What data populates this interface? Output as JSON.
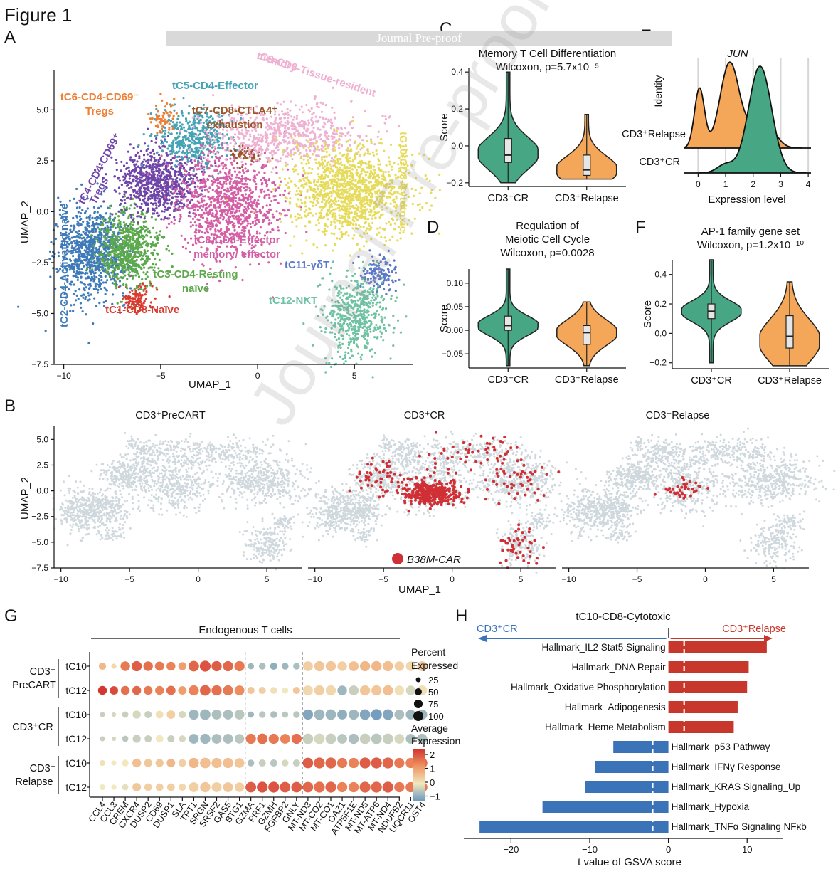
{
  "figure_title": "Figure 1",
  "watermark": "Journal Pre-proof",
  "panel_letters": {
    "A": "A",
    "B": "B",
    "C": "C",
    "D": "D",
    "E": "E",
    "F": "F",
    "G": "G",
    "H": "H"
  },
  "colors": {
    "tC1": "#d83a2e",
    "tC2": "#3f7ab8",
    "tC3": "#5ba94c",
    "tC4": "#6f45a8",
    "tC5": "#45a3b5",
    "tC6": "#ee7f35",
    "tC7": "#9a5528",
    "tC8": "#d45fa6",
    "tC9": "#efb1d2",
    "tC10": "#e6db5a",
    "tC11": "#5b78c8",
    "tC12": "#6fc2a3",
    "cr_green": "#47a683",
    "relapse_orange": "#f4a758",
    "car_red": "#d02f35",
    "bg_grey": "#cfd8dd",
    "bar_red": "#c8372c",
    "bar_blue": "#3b73b9"
  },
  "chart_data": [
    {
      "id": "A",
      "type": "scatter",
      "title": "",
      "xlabel": "UMAP_1",
      "ylabel": "UMAP_2",
      "xlim": [
        -10.5,
        8
      ],
      "ylim": [
        -7.5,
        6.2
      ],
      "xticks": [
        "−10",
        "−5",
        "0",
        "5"
      ],
      "yticks": [
        "5.0",
        "2.5",
        "0.0",
        "−2.5",
        "−5.0",
        "−7.5"
      ],
      "clusters": [
        {
          "name": "tC1-CD8-Naïve",
          "color_key": "tC1",
          "x": -6.3,
          "y": -4.3,
          "sx": 0.45,
          "sy": 0.35,
          "n": 120
        },
        {
          "name": "tC2-CD4-Activated  naïve",
          "color_key": "tC2",
          "x": -8.5,
          "y": -2.0,
          "sx": 0.9,
          "sy": 1.1,
          "n": 900
        },
        {
          "name": "tC3-CD4-Resting naïve",
          "color_key": "tC3",
          "x": -6.6,
          "y": -1.8,
          "sx": 0.75,
          "sy": 0.9,
          "n": 650
        },
        {
          "name": "tC4-CD4-CD69+ Tregs",
          "color_key": "tC4",
          "x": -5.2,
          "y": 1.4,
          "sx": 1.0,
          "sy": 0.8,
          "n": 800
        },
        {
          "name": "tC5-CD4-Effector",
          "color_key": "tC5",
          "x": -3.3,
          "y": 3.6,
          "sx": 0.9,
          "sy": 0.7,
          "n": 450
        },
        {
          "name": "tC6-CD4-CD69- Tregs",
          "color_key": "tC6",
          "x": -4.9,
          "y": 4.6,
          "sx": 0.3,
          "sy": 0.4,
          "n": 60
        },
        {
          "name": "tC7-CD8-CTLA4+ exhaustion",
          "color_key": "tC7",
          "x": -0.6,
          "y": 2.8,
          "sx": 0.4,
          "sy": 0.2,
          "n": 60
        },
        {
          "name": "tC8-CD8-Effector memory/ effector",
          "color_key": "tC8",
          "x": -1.5,
          "y": 0.4,
          "sx": 1.3,
          "sy": 1.2,
          "n": 1000
        },
        {
          "name": "tC9-CD8-Tissue-resident memory",
          "color_key": "tC9",
          "x": 1.5,
          "y": 3.8,
          "sx": 2.0,
          "sy": 0.7,
          "n": 700
        },
        {
          "name": "tC10-CD8-Cytotoxic",
          "color_key": "tC10",
          "x": 4.8,
          "y": 1.0,
          "sx": 1.5,
          "sy": 1.1,
          "n": 1300
        },
        {
          "name": "tC11-γδT",
          "color_key": "tC11",
          "x": 6.2,
          "y": -3.0,
          "sx": 0.5,
          "sy": 0.4,
          "n": 130
        },
        {
          "name": "tC12-NKT",
          "color_key": "tC12",
          "x": 5.0,
          "y": -5.1,
          "sx": 0.8,
          "sy": 1.0,
          "n": 550
        }
      ]
    },
    {
      "id": "C",
      "type": "violin",
      "title_lines": [
        "Memory T Cell Differentiation",
        "Wilcoxon, p=5.7x10⁻⁵"
      ],
      "ylabel": "Score",
      "ylim": [
        -0.22,
        0.42
      ],
      "yticks": [
        0.4,
        0.2,
        0.0,
        -0.2
      ],
      "ytick_labels": [
        "0.4",
        "0.2",
        "0.0",
        "−0.2"
      ],
      "groups": [
        {
          "name": "CD3⁺CR",
          "color_key": "cr_green",
          "min": -0.2,
          "max": 0.4,
          "q1": -0.09,
          "median": -0.05,
          "q3": 0.04,
          "mode": -0.04
        },
        {
          "name": "CD3⁺Relapse",
          "color_key": "relapse_orange",
          "min": -0.18,
          "max": 0.17,
          "q1": -0.16,
          "median": -0.13,
          "q3": -0.05,
          "mode": -0.13
        }
      ]
    },
    {
      "id": "D",
      "type": "violin",
      "title_lines": [
        "Regulation of",
        "Meiotic Cell Cycle",
        "Wilcoxon, p=0.0028"
      ],
      "ylabel": "Score",
      "ylim": [
        -0.08,
        0.13
      ],
      "yticks": [
        0.1,
        0.05,
        0.0,
        -0.05
      ],
      "ytick_labels": [
        "0.10",
        "0.05",
        "0.00",
        "−0.05"
      ],
      "groups": [
        {
          "name": "CD3⁺CR",
          "color_key": "cr_green",
          "min": -0.075,
          "max": 0.13,
          "q1": 0.0,
          "median": 0.01,
          "q3": 0.03,
          "mode": 0.01
        },
        {
          "name": "CD3⁺Relapse",
          "color_key": "relapse_orange",
          "min": -0.075,
          "max": 0.06,
          "q1": -0.03,
          "median": -0.005,
          "q3": 0.01,
          "mode": -0.005
        }
      ]
    },
    {
      "id": "E",
      "type": "ridgeline",
      "title": "JUN",
      "xlabel": "Expression level",
      "ylabel": "Identity",
      "xlim": [
        -0.5,
        4.1
      ],
      "xticks": [
        0,
        1,
        2,
        3,
        4
      ],
      "series": [
        {
          "name": "CD3⁺Relapse",
          "color_key": "relapse_orange",
          "peaks": [
            [
              0.05,
              0.7,
              0.18
            ],
            [
              1.15,
              1.0,
              0.35
            ],
            [
              2.3,
              0.4,
              0.4
            ]
          ]
        },
        {
          "name": "CD3⁺CR",
          "color_key": "cr_green",
          "peaks": [
            [
              2.25,
              1.0,
              0.42
            ],
            [
              1.0,
              0.08,
              0.3
            ]
          ]
        }
      ]
    },
    {
      "id": "F",
      "type": "violin",
      "title_lines": [
        "AP-1 family gene set",
        "Wilcoxon, p=1.2x10⁻¹⁰"
      ],
      "ylabel": "Score",
      "ylim": [
        -0.24,
        0.5
      ],
      "yticks": [
        0.4,
        0.2,
        0.0,
        -0.2
      ],
      "ytick_labels": [
        "0.4",
        "0.2",
        "0.0",
        "−0.2"
      ],
      "groups": [
        {
          "name": "CD3⁺CR",
          "color_key": "cr_green",
          "min": -0.2,
          "max": 0.5,
          "q1": 0.1,
          "median": 0.15,
          "q3": 0.2,
          "mode": 0.15
        },
        {
          "name": "CD3⁺Relapse",
          "color_key": "relapse_orange",
          "min": -0.22,
          "max": 0.35,
          "q1": -0.1,
          "median": -0.02,
          "q3": 0.12,
          "mode": -0.05
        }
      ]
    },
    {
      "id": "B",
      "type": "scatter",
      "xlabel": "UMAP_1",
      "ylabel": "UMAP_2",
      "xlim": [
        -10.5,
        8
      ],
      "ylim": [
        -7.5,
        6.2
      ],
      "xticks": [
        "−10",
        "−5",
        "0",
        "5"
      ],
      "yticks": [
        "5.0",
        "2.5",
        "0.0",
        "−2.5",
        "−5.0",
        "−7.5"
      ],
      "facets": [
        "CD3⁺PreCART",
        "CD3⁺CR",
        "CD3⁺Relapse"
      ],
      "legend": "B38M-CAR",
      "car_cells": [
        {
          "facet": "CD3⁺PreCART",
          "n": 0
        },
        {
          "facet": "CD3⁺CR",
          "n": 520
        },
        {
          "facet": "CD3⁺Relapse",
          "n": 40
        }
      ]
    },
    {
      "id": "G",
      "type": "dotplot",
      "header": "Endogenous T cells",
      "genes": [
        "CCL4",
        "CCL3",
        "CREM",
        "CXCR4",
        "DUSP2",
        "CD69",
        "DUSP1",
        "SLA",
        "TPT1",
        "SRGN",
        "SRSF2",
        "GAS5",
        "BTG1",
        "GZMA",
        "PRF1",
        "GZMH",
        "FGFBP2",
        "GNLY",
        "MT-ND3",
        "MT-CO2",
        "MT-CO1",
        "OAZ1",
        "ATP5F1E",
        "MT-ND5",
        "MT-ATP6",
        "MT-ND4",
        "NDUFB2",
        "UQCR11",
        "OST4"
      ],
      "row_groups": [
        {
          "name": "CD3⁺ PreCART",
          "rows": [
            "tC10",
            "tC12"
          ]
        },
        {
          "name": "CD3⁺CR",
          "rows": [
            "tC10",
            "tC12"
          ]
        },
        {
          "name": "CD3⁺ Relapse",
          "rows": [
            "tC10",
            "tC12"
          ]
        }
      ],
      "size_legend_title": "Percent Expressed",
      "size_levels": [
        "25",
        "50",
        "75",
        "100"
      ],
      "color_legend_title": "Average Expression",
      "color_levels": [
        "2",
        "1",
        "0",
        "−1"
      ],
      "expression": [
        [
          0.6,
          0.2,
          1.3,
          1.6,
          1.4,
          1.3,
          1.2,
          0.9,
          1.5,
          1.7,
          1.6,
          1.5,
          1.3,
          -0.6,
          -0.5,
          -0.7,
          -0.6,
          -0.5,
          0.3,
          0.4,
          0.4,
          0.3,
          0.5,
          0.6,
          0.6,
          0.5,
          0.3,
          0.2,
          0.4
        ],
        [
          2.0,
          1.8,
          1.4,
          1.5,
          1.3,
          1.2,
          1.4,
          0.9,
          1.2,
          1.5,
          1.4,
          1.3,
          1.1,
          0.4,
          0.3,
          0.1,
          0.0,
          0.4,
          0.2,
          0.3,
          0.2,
          -0.6,
          -0.3,
          0.4,
          0.4,
          0.5,
          0.1,
          -0.2,
          0.1
        ],
        [
          -0.3,
          -0.2,
          -0.3,
          -0.2,
          -0.3,
          0.1,
          0.3,
          -0.2,
          -0.6,
          -0.6,
          -0.5,
          -0.5,
          -0.4,
          -0.6,
          -0.4,
          -0.5,
          -0.4,
          -0.4,
          -0.8,
          -0.6,
          -0.6,
          -0.7,
          -0.6,
          -0.8,
          -0.9,
          -0.8,
          -0.5,
          -0.6,
          -0.6
        ],
        [
          -0.3,
          -0.2,
          -0.4,
          -0.3,
          -0.3,
          0.0,
          -0.3,
          -0.2,
          -0.6,
          -0.6,
          -0.5,
          -0.5,
          -0.4,
          1.3,
          1.4,
          1.3,
          1.2,
          1.4,
          -0.3,
          -0.2,
          -0.3,
          -0.4,
          -0.5,
          -0.3,
          -0.4,
          -0.3,
          -0.2,
          -0.5,
          -0.5
        ],
        [
          0.1,
          0.0,
          0.0,
          0.5,
          0.4,
          0.4,
          0.6,
          0.3,
          0.6,
          0.5,
          0.5,
          0.5,
          0.4,
          -0.5,
          -0.3,
          -0.4,
          -0.2,
          -0.3,
          1.6,
          1.5,
          1.5,
          1.3,
          1.2,
          1.6,
          1.6,
          1.5,
          1.3,
          1.2,
          1.4
        ],
        [
          0.0,
          0.0,
          -0.1,
          0.4,
          0.3,
          0.3,
          0.3,
          0.2,
          0.3,
          0.4,
          0.3,
          0.4,
          0.3,
          1.6,
          1.7,
          1.7,
          1.6,
          1.6,
          1.5,
          1.4,
          1.5,
          1.2,
          1.2,
          1.5,
          1.5,
          1.6,
          1.3,
          1.3,
          1.3
        ]
      ],
      "percent": [
        [
          40,
          20,
          70,
          80,
          70,
          65,
          60,
          50,
          85,
          90,
          80,
          80,
          80,
          30,
          35,
          40,
          35,
          35,
          75,
          80,
          80,
          70,
          75,
          80,
          80,
          80,
          70,
          70,
          75
        ],
        [
          60,
          55,
          60,
          60,
          60,
          60,
          65,
          55,
          80,
          85,
          80,
          80,
          75,
          40,
          40,
          35,
          30,
          40,
          75,
          80,
          80,
          70,
          75,
          80,
          80,
          80,
          70,
          70,
          75
        ],
        [
          20,
          15,
          30,
          50,
          40,
          45,
          55,
          40,
          80,
          85,
          75,
          75,
          75,
          30,
          35,
          35,
          30,
          35,
          80,
          85,
          85,
          75,
          80,
          85,
          90,
          85,
          75,
          75,
          80
        ],
        [
          20,
          15,
          30,
          50,
          40,
          45,
          40,
          35,
          75,
          80,
          75,
          75,
          70,
          80,
          85,
          80,
          75,
          80,
          85,
          85,
          85,
          75,
          80,
          85,
          85,
          85,
          75,
          75,
          80
        ],
        [
          25,
          20,
          35,
          60,
          50,
          50,
          55,
          45,
          80,
          85,
          80,
          80,
          75,
          35,
          40,
          40,
          35,
          40,
          85,
          90,
          90,
          80,
          80,
          90,
          90,
          90,
          80,
          80,
          85
        ],
        [
          25,
          20,
          30,
          55,
          45,
          45,
          45,
          40,
          75,
          80,
          75,
          75,
          70,
          85,
          90,
          90,
          85,
          85,
          85,
          90,
          90,
          80,
          80,
          90,
          90,
          90,
          80,
          80,
          85
        ]
      ]
    },
    {
      "id": "H",
      "type": "bar",
      "orientation": "horizontal",
      "title": "tC10-CD8-Cytotoxic",
      "xlabel": "t value of GSVA score",
      "xlim": [
        -26,
        14.5
      ],
      "xticks": [
        -20,
        -10,
        0,
        10
      ],
      "xtick_labels": [
        "−20",
        "−10",
        "0",
        "10"
      ],
      "left_arrow": "CD3⁺CR",
      "right_arrow": "CD3⁺Relapse",
      "threshold": 2,
      "categories": [
        "Hallmark_IL2 Stat5 Signaling",
        "Hallmark_DNA Repair",
        "Hallmark_Oxidative Phosphorylation",
        "Hallmark_Adipogenesis",
        "Hallmark_Heme Metabolism",
        "Hallmark_p53 Pathway",
        "Hallmark_IFNγ Response",
        "Hallmark_KRAS Signaling_Up",
        "Hallmark_Hypoxia",
        "Hallmark_TNFα Signaling NFκb"
      ],
      "values": [
        12.5,
        10.2,
        10.0,
        8.8,
        8.3,
        -7.0,
        -9.3,
        -10.6,
        -16.0,
        -24.0
      ]
    }
  ]
}
